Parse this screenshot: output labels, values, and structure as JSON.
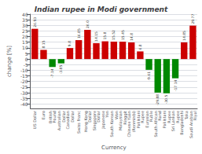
{
  "chart_data": {
    "type": "bar",
    "title": "Indian rupee in Modi government",
    "x_label": "Currency",
    "y_label": "change [%]",
    "categories": [
      "US Dollar",
      "Euro",
      "British\nPound",
      "Australian\nDollar",
      "Canadian\nDollar",
      "Swiss Franc",
      "Hong Kong\nDollar",
      "Singapore\nDollar",
      "Japanese\nYen",
      "South Korean\nWon",
      "Malaysian\nRinggit",
      "Chinese Yuan\n(Renminbi)",
      "Pakistani\nRupee",
      "Eurasian\nRuble",
      "South African\nRand",
      "Pakistani\nRupee",
      "Sri Lankan\nRupee",
      "Bangladeshi\nTaka",
      "Saudi Arabian\nRiyal"
    ],
    "values": [
      26.93,
      8.15,
      -7.14,
      -3.85,
      9.8,
      16.85,
      26.0,
      14.15,
      15.8,
      15.52,
      15.45,
      14.8,
      6.8,
      -9.61,
      -29.88,
      -30.5,
      -17.14,
      14.85,
      29.77
    ],
    "value_labels": [
      "26.93",
      "8.15",
      "-7.14",
      "-3.85",
      "9.8",
      "16.85",
      "26.0",
      "14.15",
      "15.8",
      "15.52",
      "15.45",
      "14.8",
      "6.8",
      "-9.61",
      "-29.88",
      "-30.5",
      "-17.14",
      "14.85",
      "29.77"
    ],
    "colors": [
      "#cc0000",
      "#cc0000",
      "#008800",
      "#008800",
      "#cc0000",
      "#cc0000",
      "#cc0000",
      "#cc0000",
      "#cc0000",
      "#cc0000",
      "#cc0000",
      "#cc0000",
      "#cc0000",
      "#008800",
      "#008800",
      "#008800",
      "#008800",
      "#cc0000",
      "#cc0000"
    ],
    "data_labels": true,
    "ylim": [
      -44,
      40
    ],
    "yticks": [
      -40,
      -35,
      -30,
      -25,
      -20,
      -15,
      -10,
      -5,
      0,
      5,
      10,
      15,
      20,
      25,
      30,
      35,
      40
    ],
    "grid": true
  }
}
